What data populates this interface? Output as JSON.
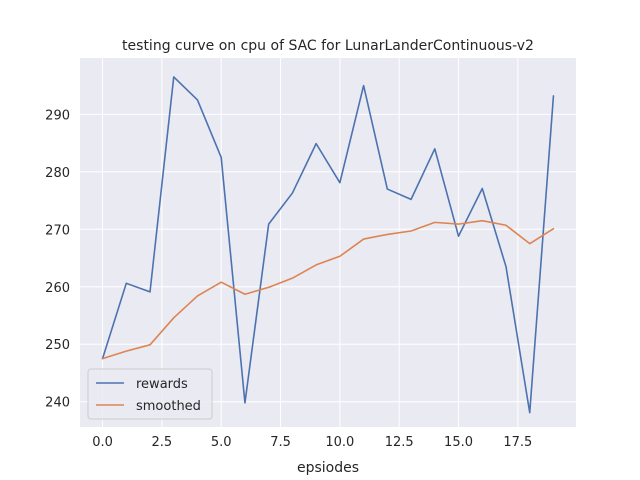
{
  "chart_data": {
    "type": "line",
    "title": "testing curve on cpu of SAC for LunarLanderContinuous-v2",
    "xlabel": "epsiodes",
    "ylabel": "",
    "xlim": [
      -0.95,
      19.95
    ],
    "ylim": [
      235.6,
      299.8
    ],
    "xticks": [
      0.0,
      2.5,
      5.0,
      7.5,
      10.0,
      12.5,
      15.0,
      17.5
    ],
    "xtick_labels": [
      "0.0",
      "2.5",
      "5.0",
      "7.5",
      "10.0",
      "12.5",
      "15.0",
      "17.5"
    ],
    "yticks": [
      240,
      250,
      260,
      270,
      280,
      290
    ],
    "ytick_labels": [
      "240",
      "250",
      "260",
      "270",
      "280",
      "290"
    ],
    "grid": true,
    "legend_position": "lower-left",
    "x": [
      0,
      1,
      2,
      3,
      4,
      5,
      6,
      7,
      8,
      9,
      10,
      11,
      12,
      13,
      14,
      15,
      16,
      17,
      18,
      19
    ],
    "series": [
      {
        "name": "rewards",
        "color": "#4c72b0",
        "values": [
          247.5,
          260.6,
          259.1,
          296.5,
          292.5,
          282.5,
          239.8,
          270.9,
          276.3,
          284.9,
          278.1,
          295.0,
          277.0,
          275.2,
          284.0,
          268.8,
          277.1,
          263.5,
          238.1,
          293.2
        ]
      },
      {
        "name": "smoothed",
        "color": "#dd8452",
        "values": [
          247.5,
          248.8,
          249.9,
          254.6,
          258.4,
          260.8,
          258.7,
          259.9,
          261.5,
          263.8,
          265.3,
          268.3,
          269.1,
          269.7,
          271.2,
          270.9,
          271.5,
          270.7,
          267.5,
          270.1
        ]
      }
    ]
  }
}
